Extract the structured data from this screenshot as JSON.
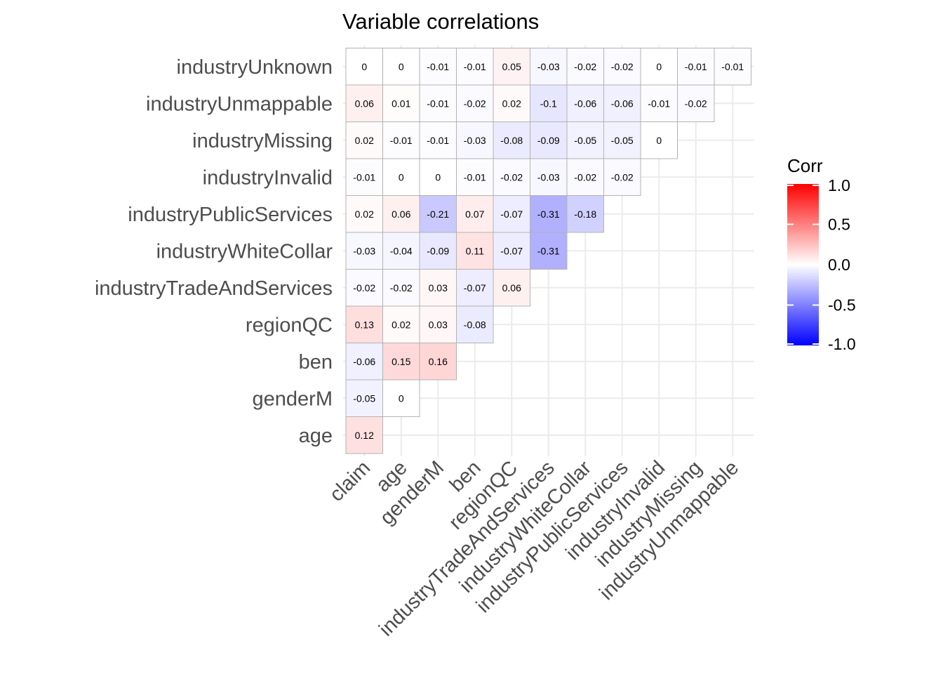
{
  "chart_data": {
    "type": "heatmap",
    "title": "Variable correlations",
    "x_labels": [
      "claim",
      "age",
      "genderM",
      "ben",
      "regionQC",
      "industryTradeAndServices",
      "industryWhiteCollar",
      "industryPublicServices",
      "industryInvalid",
      "industryMissing",
      "industryUnmappable"
    ],
    "y_labels": [
      "age",
      "genderM",
      "ben",
      "regionQC",
      "industryTradeAndServices",
      "industryWhiteCollar",
      "industryPublicServices",
      "industryInvalid",
      "industryMissing",
      "industryUnmappable",
      "industryUnknown"
    ],
    "rows": [
      [
        0.12
      ],
      [
        -0.05,
        0
      ],
      [
        -0.06,
        0.15,
        0.16
      ],
      [
        0.13,
        0.02,
        0.03,
        -0.08
      ],
      [
        -0.02,
        -0.02,
        0.03,
        -0.07,
        0.06
      ],
      [
        -0.03,
        -0.04,
        -0.09,
        0.11,
        -0.07,
        -0.31
      ],
      [
        0.02,
        0.06,
        -0.21,
        0.07,
        -0.07,
        -0.31,
        -0.18
      ],
      [
        -0.01,
        0,
        0,
        -0.01,
        -0.02,
        -0.03,
        -0.02,
        -0.02
      ],
      [
        0.02,
        -0.01,
        -0.01,
        -0.03,
        -0.08,
        -0.09,
        -0.05,
        -0.05,
        0
      ],
      [
        0.06,
        0.01,
        -0.01,
        -0.02,
        0.02,
        -0.1,
        -0.06,
        -0.06,
        -0.01,
        -0.02
      ],
      [
        0,
        0,
        -0.01,
        -0.01,
        0.05,
        -0.03,
        -0.02,
        -0.02,
        0,
        -0.01,
        -0.01
      ]
    ],
    "legend": {
      "title": "Corr",
      "ticks": [
        1.0,
        0.5,
        0.0,
        -0.5,
        -1.0
      ],
      "tick_labels": [
        "1.0",
        "0.5",
        "0.0",
        "-0.5",
        "-1.0"
      ],
      "range": [
        -1,
        1
      ],
      "low_color": "#0000ff",
      "mid_color": "#ffffff",
      "high_color": "#ff0000",
      "placement": "right"
    },
    "grid": true
  }
}
